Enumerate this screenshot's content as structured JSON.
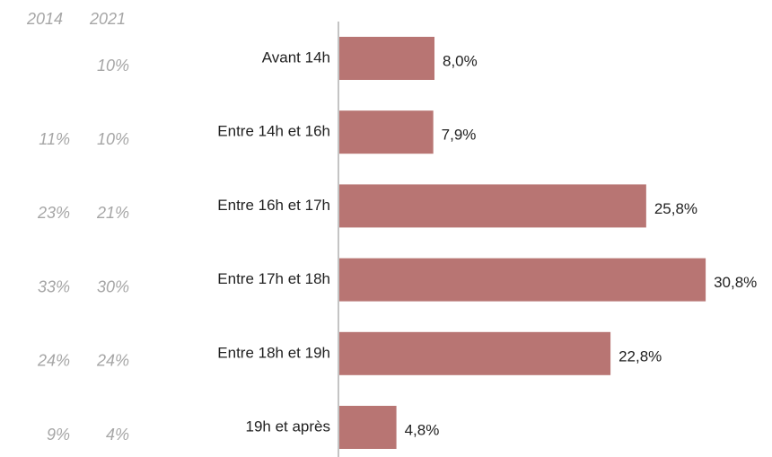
{
  "chart_data": {
    "type": "hbar",
    "categories": [
      "Avant 14h",
      "Entre 14h et 16h",
      "Entre 16h et 17h",
      "Entre 17h et 18h",
      "Entre 18h et 19h",
      "19h et après"
    ],
    "values": [
      8.0,
      7.9,
      25.8,
      30.8,
      22.8,
      4.8
    ],
    "value_labels": [
      "8,0%",
      "7,9%",
      "25,8%",
      "30,8%",
      "22,8%",
      "4,8%"
    ],
    "color": "#b87573",
    "columns": [
      {
        "header": "2014",
        "labels": [
          null,
          "11%",
          "23%",
          "33%",
          "24%",
          "9%"
        ]
      },
      {
        "header": "2021",
        "labels": [
          "10%",
          "10%",
          "21%",
          "30%",
          "24%",
          "4%"
        ]
      }
    ]
  }
}
